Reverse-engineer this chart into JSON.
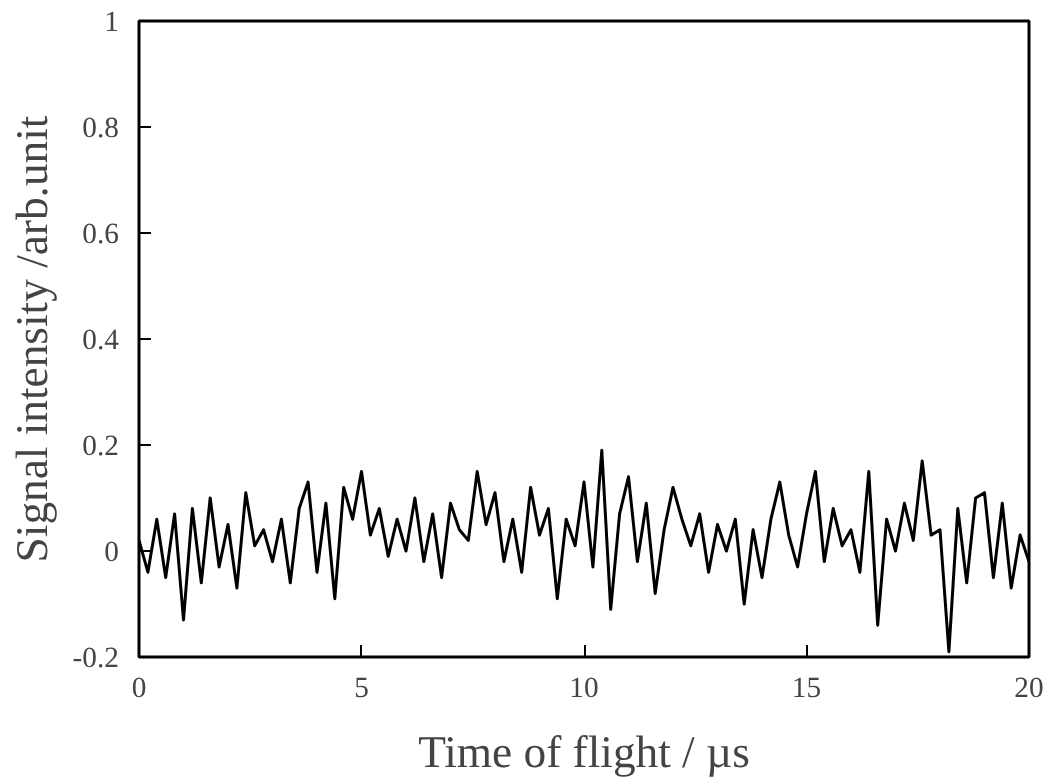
{
  "chart_data": {
    "type": "line",
    "xlabel": "Time of flight / µs",
    "ylabel": "Signal intensity /arb.unit",
    "x": [
      0,
      0.2,
      0.4,
      0.6,
      0.8,
      1.0,
      1.2,
      1.4,
      1.6,
      1.8,
      2.0,
      2.2,
      2.4,
      2.6,
      2.8,
      3.0,
      3.2,
      3.4,
      3.6,
      3.8,
      4.0,
      4.2,
      4.4,
      4.6,
      4.8,
      5.0,
      5.2,
      5.4,
      5.6,
      5.8,
      6.0,
      6.2,
      6.4,
      6.6,
      6.8,
      7.0,
      7.2,
      7.4,
      7.6,
      7.8,
      8.0,
      8.2,
      8.4,
      8.6,
      8.8,
      9.0,
      9.2,
      9.4,
      9.6,
      9.8,
      10.0,
      10.2,
      10.4,
      10.6,
      10.8,
      11.0,
      11.2,
      11.4,
      11.6,
      11.8,
      12.0,
      12.2,
      12.4,
      12.6,
      12.8,
      13.0,
      13.2,
      13.4,
      13.6,
      13.8,
      14.0,
      14.2,
      14.4,
      14.6,
      14.8,
      15.0,
      15.2,
      15.4,
      15.6,
      15.8,
      16.0,
      16.2,
      16.4,
      16.6,
      16.8,
      17.0,
      17.2,
      17.4,
      17.6,
      17.8,
      18.0,
      18.2,
      18.4,
      18.6,
      18.8,
      19.0,
      19.2,
      19.4,
      19.6,
      19.8,
      20.0
    ],
    "series": [
      {
        "color": "#000000",
        "values": [
          0.02,
          -0.04,
          0.06,
          -0.05,
          0.07,
          -0.13,
          0.08,
          -0.06,
          0.1,
          -0.03,
          0.05,
          -0.07,
          0.11,
          0.01,
          0.04,
          -0.02,
          0.06,
          -0.06,
          0.08,
          0.13,
          -0.04,
          0.09,
          -0.09,
          0.12,
          0.06,
          0.15,
          0.03,
          0.08,
          -0.01,
          0.06,
          0.0,
          0.1,
          -0.02,
          0.07,
          -0.05,
          0.09,
          0.04,
          0.02,
          0.15,
          0.05,
          0.11,
          -0.02,
          0.06,
          -0.04,
          0.12,
          0.03,
          0.08,
          -0.09,
          0.06,
          0.01,
          0.13,
          -0.03,
          0.19,
          -0.11,
          0.07,
          0.14,
          -0.02,
          0.09,
          -0.08,
          0.04,
          0.12,
          0.06,
          0.01,
          0.07,
          -0.04,
          0.05,
          0.0,
          0.06,
          -0.1,
          0.04,
          -0.05,
          0.06,
          0.13,
          0.03,
          -0.03,
          0.07,
          0.15,
          -0.02,
          0.08,
          0.01,
          0.04,
          -0.04,
          0.15,
          -0.14,
          0.06,
          0.0,
          0.09,
          0.02,
          0.17,
          0.03,
          0.04,
          -0.19,
          0.08,
          -0.06,
          0.1,
          0.11,
          -0.05,
          0.09,
          -0.07,
          0.03,
          -0.02
        ]
      }
    ],
    "xlim": [
      0,
      20
    ],
    "ylim": [
      -0.2,
      1
    ],
    "xticks": [
      0,
      5,
      10,
      15,
      20
    ],
    "yticks": [
      -0.2,
      0,
      0.2,
      0.4,
      0.6,
      0.8,
      1
    ],
    "grid": false,
    "marker": "none",
    "line_style": "solid"
  }
}
